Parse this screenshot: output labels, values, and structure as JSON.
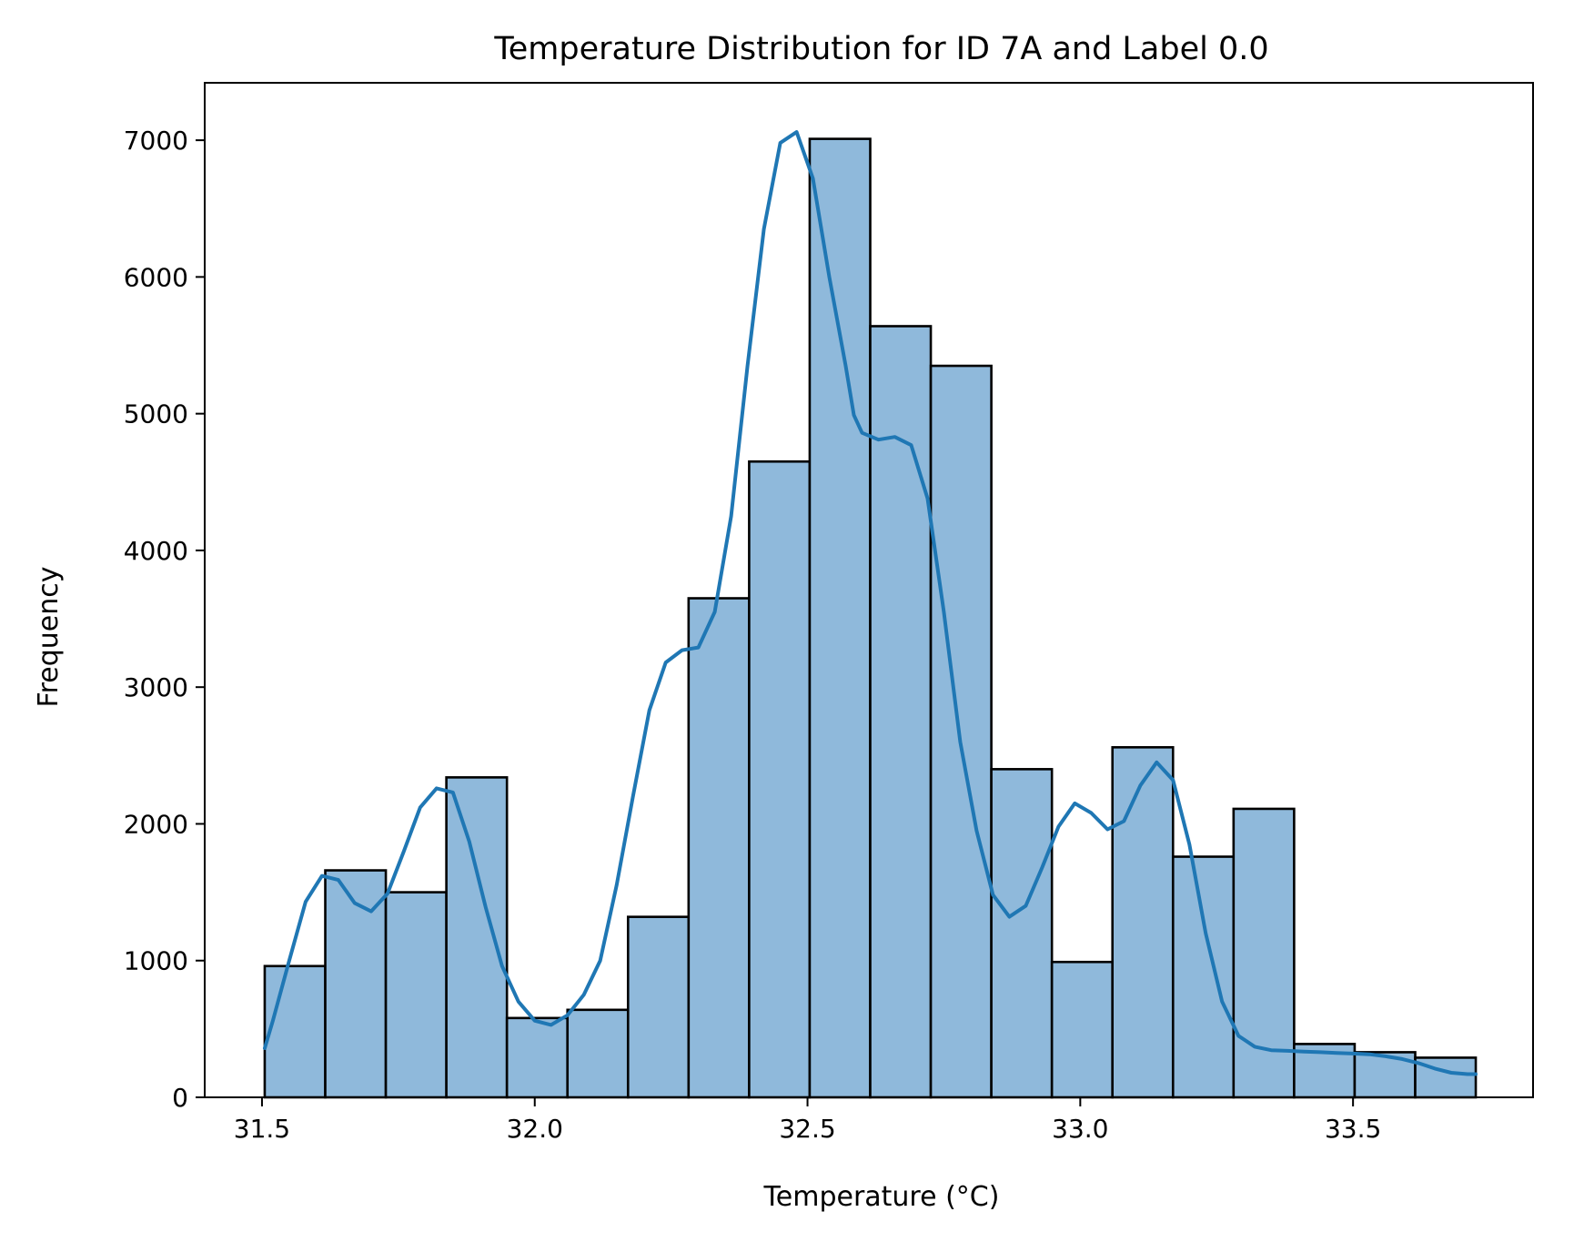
{
  "chart_data": {
    "type": "histogram",
    "title": "Temperature Distribution for ID 7A and Label 0.0",
    "xlabel": "Temperature (°C)",
    "ylabel": "Frequency",
    "xlim": [
      31.395,
      33.83
    ],
    "ylim": [
      0,
      7420
    ],
    "xticks": [
      31.5,
      32.0,
      32.5,
      33.0,
      33.5
    ],
    "xtick_labels": [
      "31.5",
      "32.0",
      "32.5",
      "33.0",
      "33.5"
    ],
    "yticks": [
      0,
      1000,
      2000,
      3000,
      4000,
      5000,
      6000,
      7000
    ],
    "ytick_labels": [
      "0",
      "1000",
      "2000",
      "3000",
      "4000",
      "5000",
      "6000",
      "7000"
    ],
    "grid": false,
    "bars": {
      "bin_edges": [
        31.505,
        31.616,
        31.727,
        31.838,
        31.949,
        32.06,
        32.171,
        32.282,
        32.393,
        32.504,
        32.615,
        32.726,
        32.837,
        32.948,
        33.059,
        33.17,
        33.281,
        33.392,
        33.503,
        33.614,
        33.725
      ],
      "counts": [
        960,
        1660,
        1500,
        2340,
        580,
        640,
        1320,
        3650,
        4650,
        7010,
        5640,
        5350,
        2400,
        990,
        2560,
        1760,
        2110,
        390,
        330,
        290
      ],
      "fill_color": "#8fb9db",
      "edge_color": "#000000"
    },
    "kde": {
      "x": [
        31.505,
        31.52,
        31.55,
        31.58,
        31.61,
        31.64,
        31.67,
        31.7,
        31.73,
        31.76,
        31.79,
        31.82,
        31.85,
        31.88,
        31.91,
        31.94,
        31.97,
        32.0,
        32.03,
        32.06,
        32.09,
        32.12,
        32.15,
        32.18,
        32.21,
        32.24,
        32.27,
        32.3,
        32.33,
        32.36,
        32.39,
        32.42,
        32.45,
        32.48,
        32.51,
        32.54,
        32.57,
        32.585,
        32.6,
        32.63,
        32.66,
        32.69,
        32.72,
        32.75,
        32.78,
        32.81,
        32.84,
        32.87,
        32.9,
        32.93,
        32.96,
        32.99,
        33.02,
        33.05,
        33.08,
        33.11,
        33.14,
        33.17,
        33.2,
        33.23,
        33.26,
        33.29,
        33.32,
        33.35,
        33.38,
        33.41,
        33.44,
        33.47,
        33.5,
        33.53,
        33.56,
        33.59,
        33.62,
        33.65,
        33.68,
        33.71,
        33.725
      ],
      "y": [
        360,
        560,
        1000,
        1430,
        1620,
        1590,
        1420,
        1360,
        1490,
        1800,
        2120,
        2260,
        2230,
        1870,
        1390,
        960,
        700,
        560,
        530,
        600,
        750,
        1000,
        1550,
        2200,
        2830,
        3180,
        3270,
        3290,
        3550,
        4250,
        5350,
        6350,
        6980,
        7060,
        6720,
        6000,
        5350,
        4990,
        4860,
        4810,
        4830,
        4770,
        4380,
        3550,
        2600,
        1950,
        1480,
        1320,
        1400,
        1680,
        1980,
        2150,
        2080,
        1960,
        2020,
        2280,
        2450,
        2320,
        1850,
        1200,
        700,
        450,
        370,
        345,
        340,
        335,
        330,
        325,
        320,
        315,
        300,
        280,
        250,
        210,
        180,
        170,
        170
      ],
      "color": "#1f77b4"
    },
    "legend": "none"
  }
}
